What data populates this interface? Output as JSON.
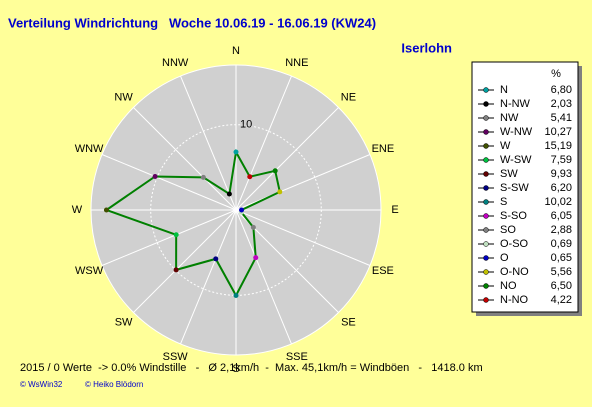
{
  "chart_data": {
    "type": "radar",
    "title": "Verteilung Windrichtung   Woche 10.06.19 - 16.06.19 (KW24)",
    "subtitle": "Iserlohn",
    "axis_labels": [
      "N",
      "NNE",
      "NE",
      "ENE",
      "E",
      "ESE",
      "SE",
      "SSE",
      "S",
      "SSW",
      "SW",
      "WSW",
      "W",
      "WNW",
      "NW",
      "NNW"
    ],
    "direction": "counterclockwise",
    "categories": [
      "N",
      "N-NW",
      "NW",
      "W-NW",
      "W",
      "W-SW",
      "SW",
      "S-SW",
      "S",
      "S-SO",
      "SO",
      "O-SO",
      "O",
      "O-NO",
      "NO",
      "N-NO"
    ],
    "legend_unit": "%",
    "series": [
      {
        "name": "Windrichtung",
        "color": "#008000",
        "values": [
          6.8,
          2.03,
          5.41,
          10.27,
          15.19,
          7.59,
          9.93,
          6.2,
          10.02,
          6.05,
          2.88,
          0.69,
          0.65,
          5.56,
          6.5,
          4.22
        ],
        "value_labels": [
          "6,80",
          "2,03",
          "5,41",
          "10,27",
          "15,19",
          "7,59",
          "9,93",
          "6,20",
          "10,02",
          "6,05",
          "2,88",
          "0,69",
          "0,65",
          "5,56",
          "6,50",
          "4,22"
        ],
        "marker_colors": [
          "#00a0a0",
          "#000000",
          "#808080",
          "#600060",
          "#405000",
          "#00c040",
          "#600000",
          "#000080",
          "#008080",
          "#c000c0",
          "#808080",
          "#c0e0c0",
          "#0000c0",
          "#c0c000",
          "#008000",
          "#c00000"
        ]
      }
    ],
    "rlim": [
      0,
      17
    ],
    "rticks": [
      10
    ],
    "footer": "2015 / 0 Werte  -> 0.0% Windstille   -   Ø 2,1km/h  -  Max. 45,1km/h = Windböen   -   1418.0 km",
    "credits": [
      "© WsWin32",
      "© Heiko Blödorn"
    ]
  }
}
